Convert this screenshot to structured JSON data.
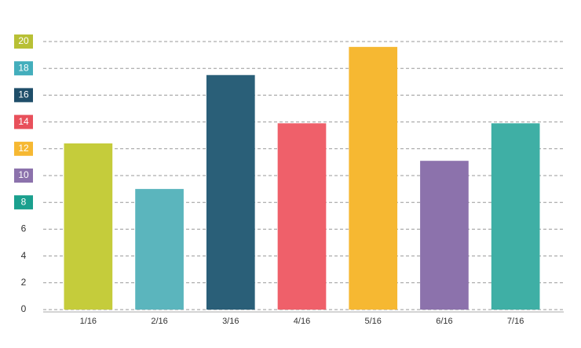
{
  "chart_data": {
    "type": "bar",
    "categories": [
      "1/16",
      "2/16",
      "3/16",
      "4/16",
      "5/16",
      "6/16",
      "7/16"
    ],
    "values": [
      12.4,
      9.0,
      17.5,
      13.9,
      19.6,
      11.1,
      13.9
    ],
    "colors": [
      "#c5cc3b",
      "#5bb5bd",
      "#2a5f78",
      "#ef606a",
      "#f6b832",
      "#8c72ac",
      "#3fafa5"
    ],
    "ylim": [
      0,
      20
    ],
    "yticks": [
      0,
      2,
      4,
      6,
      8,
      10,
      12,
      14,
      16,
      18,
      20
    ],
    "ytick_badge_colors": [
      null,
      null,
      null,
      null,
      "#1aa08e",
      "#8c72ac",
      "#f6b832",
      "#e8505b",
      "#1f4e69",
      "#43aebc",
      "#b8c035"
    ],
    "grid": true
  }
}
